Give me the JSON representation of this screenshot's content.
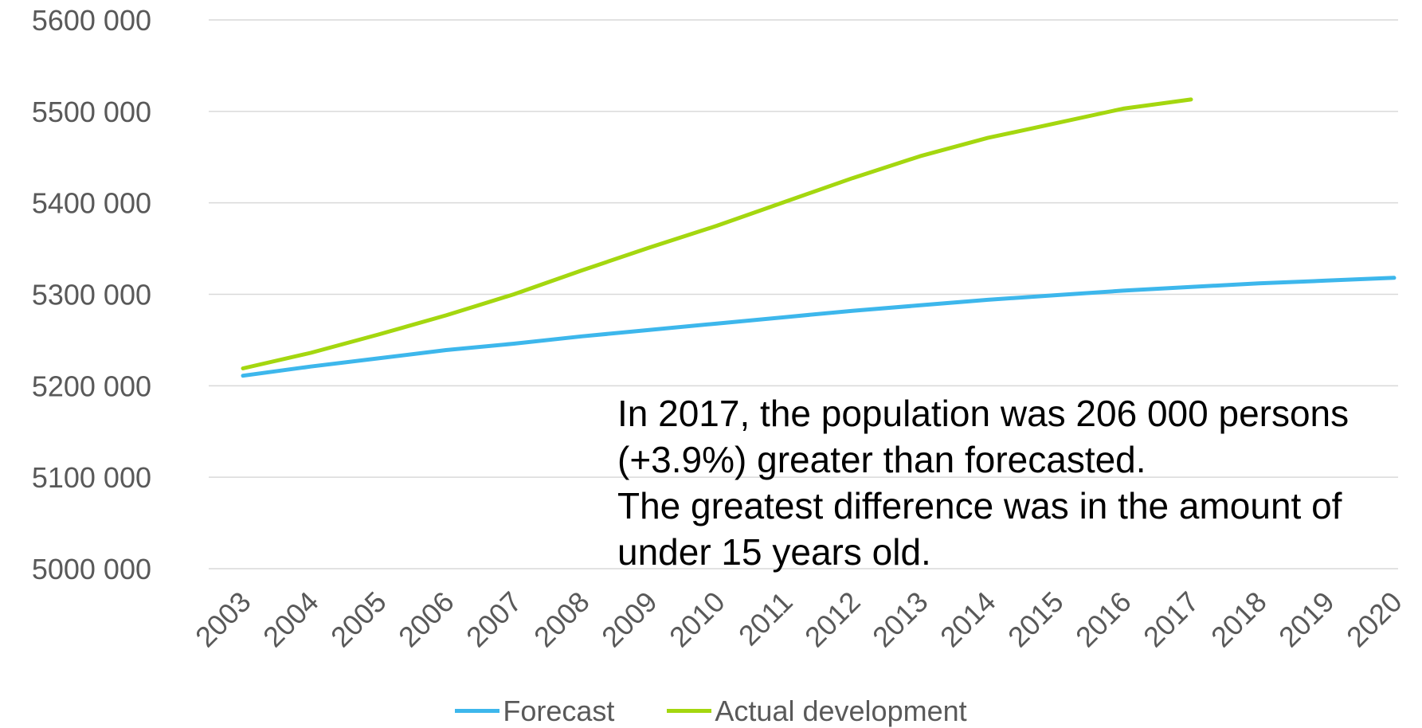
{
  "chart_data": {
    "type": "line",
    "x": [
      "2003",
      "2004",
      "2005",
      "2006",
      "2007",
      "2008",
      "2009",
      "2010",
      "2011",
      "2012",
      "2013",
      "2014",
      "2015",
      "2016",
      "2017",
      "2018",
      "2019",
      "2020"
    ],
    "ylim": [
      5000000,
      5600000
    ],
    "yticks": [
      5000000,
      5100000,
      5200000,
      5300000,
      5400000,
      5500000,
      5600000
    ],
    "ytick_labels": [
      "5000 000",
      "5100 000",
      "5200 000",
      "5300 000",
      "5400 000",
      "5500 000",
      "5600 000"
    ],
    "grid": true,
    "legend_position": "bottom",
    "series": [
      {
        "name": "Forecast",
        "color": "#3DB7EC",
        "values": [
          5211000,
          5221000,
          5230000,
          5239000,
          5246000,
          5254000,
          5261000,
          5268000,
          5275000,
          5282000,
          5288000,
          5294000,
          5299000,
          5304000,
          5308000,
          5312000,
          5315000,
          5318000
        ]
      },
      {
        "name": "Actual development",
        "color": "#A4D70F",
        "values": [
          5219000,
          5236000,
          5256000,
          5277000,
          5300000,
          5326000,
          5351000,
          5375000,
          5401000,
          5427000,
          5451000,
          5471000,
          5487000,
          5503000,
          5513000,
          null,
          null,
          null
        ]
      }
    ],
    "annotation": [
      "In 2017, the population was 206 000 persons",
      "(+3.9%) greater than forecasted.",
      "The greatest difference was in the amount of",
      "under 15 years old."
    ]
  }
}
